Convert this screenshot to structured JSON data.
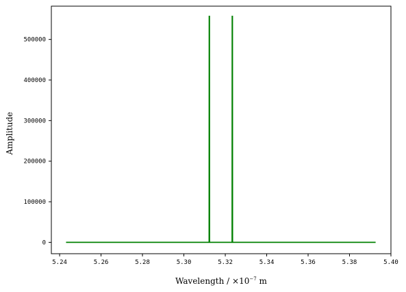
{
  "chart_data": {
    "type": "line",
    "title": "",
    "xlabel": "Wavelength / ×10",
    "xlabel_exp": "−7",
    "xlabel_unit": " m",
    "ylabel": "Amplitude",
    "xlim": [
      5.236,
      5.4
    ],
    "ylim": [
      -28000,
      582000
    ],
    "xticks": [
      5.24,
      5.26,
      5.28,
      5.3,
      5.32,
      5.34,
      5.36,
      5.38,
      5.4
    ],
    "xtick_labels": [
      "5.24",
      "5.26",
      "5.28",
      "5.30",
      "5.32",
      "5.34",
      "5.36",
      "5.38",
      "5.40"
    ],
    "yticks": [
      0,
      100000,
      200000,
      300000,
      400000,
      500000
    ],
    "ytick_labels": [
      "0",
      "100000",
      "200000",
      "300000",
      "400000",
      "500000"
    ],
    "grid": false,
    "colors": {
      "line": "#008000"
    },
    "series": [
      {
        "x": [
          5.2431,
          5.3122,
          5.31225,
          5.31235,
          5.3124,
          5.3233,
          5.32335,
          5.32345,
          5.3235,
          5.3926
        ],
        "y": [
          0,
          0,
          557000,
          557000,
          0,
          0,
          557000,
          557000,
          0,
          0
        ]
      }
    ]
  }
}
